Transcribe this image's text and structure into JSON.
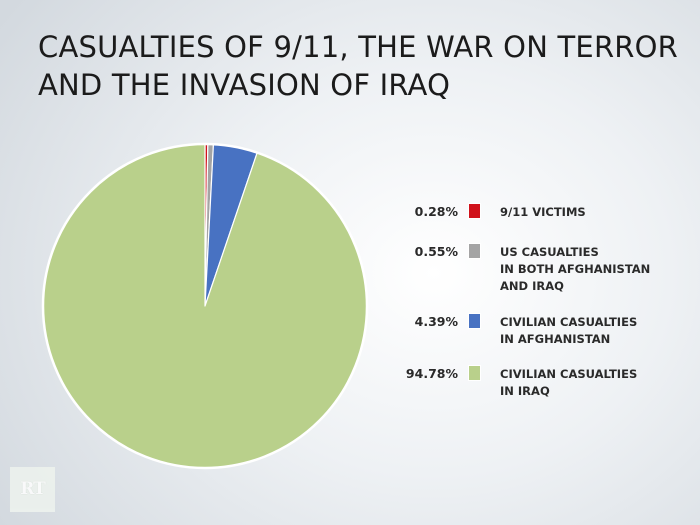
{
  "title_lines": [
    "CASUALTIES OF 9/11, THE WAR ON TERROR",
    "AND THE INVASION OF IRAQ"
  ],
  "logo_text": "RT",
  "chart_data": {
    "type": "pie",
    "title": "CASUALTIES OF 9/11, THE WAR ON TERROR AND THE INVASION OF IRAQ",
    "legend_position": "right",
    "slices": [
      {
        "label_lines": [
          "9/11 VICTIMS"
        ],
        "value": 0.28,
        "value_label": "0.28%",
        "color": "#d0121b"
      },
      {
        "label_lines": [
          "US CASUALTIES",
          "IN BOTH AFGHANISTAN",
          "AND IRAQ"
        ],
        "value": 0.55,
        "value_label": "0.55%",
        "color": "#a4a4a4"
      },
      {
        "label_lines": [
          "CIVILIAN CASUALTIES",
          "IN AFGHANISTAN"
        ],
        "value": 4.39,
        "value_label": "4.39%",
        "color": "#4872c2"
      },
      {
        "label_lines": [
          "CIVILIAN CASUALTIES",
          "IN IRAQ"
        ],
        "value": 94.78,
        "value_label": "94.78%",
        "color": "#b9d08b"
      }
    ]
  }
}
